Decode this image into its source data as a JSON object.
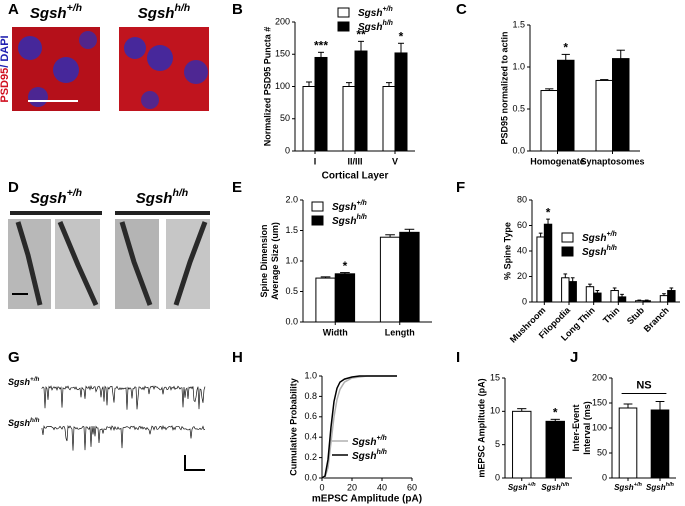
{
  "panels": [
    "A",
    "B",
    "C",
    "D",
    "E",
    "F",
    "G",
    "H",
    "I",
    "J"
  ],
  "panel_a": {
    "titles": [
      "Sgsh+/h",
      "Sgshh/h"
    ],
    "stain_labels": [
      "PSD95",
      "/ DAPI"
    ]
  },
  "panel_d": {
    "titles": [
      "Sgsh+/h",
      "Sgshh/h"
    ]
  },
  "panel_g": {
    "trace_labels": [
      "Sgsh+/h",
      "Sgshh/h"
    ]
  },
  "chart_data": [
    {
      "type": "bar",
      "ylabel": [
        "Normalized PSD95 Puncta #"
      ],
      "xlabel": "Cortical Layer",
      "categories": [
        "I",
        "II/III",
        "V"
      ],
      "series": [
        {
          "name": "Sgsh+/h",
          "color": "#ffffff",
          "values": [
            100,
            100,
            100
          ],
          "errors": [
            7,
            6,
            6
          ]
        },
        {
          "name": "Sgshh/h",
          "color": "#000000",
          "values": [
            145,
            155,
            152
          ],
          "errors": [
            8,
            15,
            15
          ]
        }
      ],
      "annotations": [
        "***",
        "**",
        "*"
      ],
      "ylim": [
        0,
        200
      ],
      "yticks": [
        0,
        50,
        100,
        150,
        200
      ]
    },
    {
      "type": "bar",
      "ylabel": [
        "PSD95 normalized to actin"
      ],
      "categories": [
        "Homogenate",
        "Synaptosomes"
      ],
      "series": [
        {
          "color": "#ffffff",
          "values": [
            0.72,
            0.84
          ],
          "errors": [
            0.02,
            0.01
          ]
        },
        {
          "color": "#000000",
          "values": [
            1.08,
            1.1
          ],
          "errors": [
            0.07,
            0.1
          ]
        }
      ],
      "annotations": [
        "*",
        null
      ],
      "ylim": [
        0,
        1.5
      ],
      "yticks": [
        {
          "value": 0,
          "label": "0.0"
        },
        {
          "value": 0.5,
          "label": "0.5"
        },
        {
          "value": 1,
          "label": "1.0"
        },
        {
          "value": 1.5,
          "label": "1.5"
        }
      ]
    },
    {
      "type": "bar",
      "ylabel": [
        "Spine Dimension",
        "Average Size (um)"
      ],
      "categories": [
        "Width",
        "Length"
      ],
      "series": [
        {
          "name": "Sgsh+/h",
          "color": "#ffffff",
          "values": [
            0.72,
            1.39
          ],
          "errors": [
            0.02,
            0.04
          ]
        },
        {
          "name": "Sgshh/h",
          "color": "#000000",
          "values": [
            0.79,
            1.47
          ],
          "errors": [
            0.02,
            0.05
          ]
        }
      ],
      "annotations": [
        "*",
        null
      ],
      "ylim": [
        0,
        2
      ],
      "yticks": [
        {
          "value": 0,
          "label": "0.0"
        },
        {
          "value": 0.5,
          "label": "0.5"
        },
        {
          "value": 1,
          "label": "1.0"
        },
        {
          "value": 1.5,
          "label": "1.5"
        },
        {
          "value": 2,
          "label": "2.0"
        }
      ]
    },
    {
      "type": "bar",
      "ylabel": [
        "% Spine Type"
      ],
      "categories": [
        "Mushroom",
        "Filopodia",
        "Long Thin",
        "Thin",
        "Stub",
        "Branch"
      ],
      "series": [
        {
          "name": "Sgsh+/h",
          "color": "#ffffff",
          "values": [
            51,
            19,
            12,
            9,
            1,
            5
          ],
          "errors": [
            3,
            3,
            2,
            2,
            0.5,
            1.5
          ]
        },
        {
          "name": "Sgshh/h",
          "color": "#000000",
          "values": [
            61,
            16,
            7,
            4,
            1,
            9
          ],
          "errors": [
            4,
            3,
            2,
            2,
            0.5,
            2
          ]
        }
      ],
      "annotations": [
        "*",
        null,
        null,
        null,
        null,
        null
      ],
      "ylim": [
        0,
        80
      ],
      "yticks": [
        0,
        20,
        40,
        60,
        80
      ]
    },
    {
      "type": "line",
      "ylabel": [
        "Cumulative Probability"
      ],
      "xlabel": "mEPSC Amplitude (pA)",
      "x": [
        0,
        2,
        4,
        6,
        8,
        10,
        12,
        15,
        20,
        25,
        30,
        40,
        50
      ],
      "series": [
        {
          "name": "Sgsh+/h",
          "color": "#b0b0b0",
          "values": [
            0,
            0.01,
            0.1,
            0.35,
            0.6,
            0.77,
            0.87,
            0.94,
            0.98,
            0.99,
            1,
            1,
            1
          ]
        },
        {
          "name": "Sgshh/h",
          "color": "#000000",
          "values": [
            0,
            0.02,
            0.18,
            0.5,
            0.75,
            0.88,
            0.94,
            0.97,
            0.99,
            1,
            1,
            1,
            1
          ]
        }
      ],
      "xlim": [
        0,
        60
      ],
      "xticks": [
        0,
        20,
        40,
        60
      ],
      "ylim": [
        0,
        1
      ],
      "yticks": [
        {
          "value": 0,
          "label": "0.0"
        },
        {
          "value": 0.2,
          "label": "0.2"
        },
        {
          "value": 0.4,
          "label": "0.4"
        },
        {
          "value": 0.6,
          "label": "0.6"
        },
        {
          "value": 0.8,
          "label": "0.8"
        },
        {
          "value": 1,
          "label": "1.0"
        }
      ]
    },
    {
      "type": "bar",
      "ylabel": [
        "mEPSC Amplitude (pA)"
      ],
      "categories": [
        "Sgsh+/h",
        "Sgshh/h"
      ],
      "values": [
        10,
        8.5
      ],
      "errors": [
        0.4,
        0.3
      ],
      "colors": [
        "#ffffff",
        "#000000"
      ],
      "annotations": [
        null,
        "*"
      ],
      "ylim": [
        0,
        15
      ],
      "yticks": [
        0,
        5,
        10,
        15
      ]
    },
    {
      "type": "bar",
      "ylabel": [
        "Inter-Event",
        "Interval (ms)"
      ],
      "categories": [
        "Sgsh+/h",
        "Sgshh/h"
      ],
      "values": [
        140,
        136
      ],
      "errors": [
        8,
        17
      ],
      "colors": [
        "#ffffff",
        "#000000"
      ],
      "bracket_annotation": "NS",
      "ylim": [
        0,
        200
      ],
      "yticks": [
        0,
        50,
        100,
        150,
        200
      ]
    }
  ]
}
